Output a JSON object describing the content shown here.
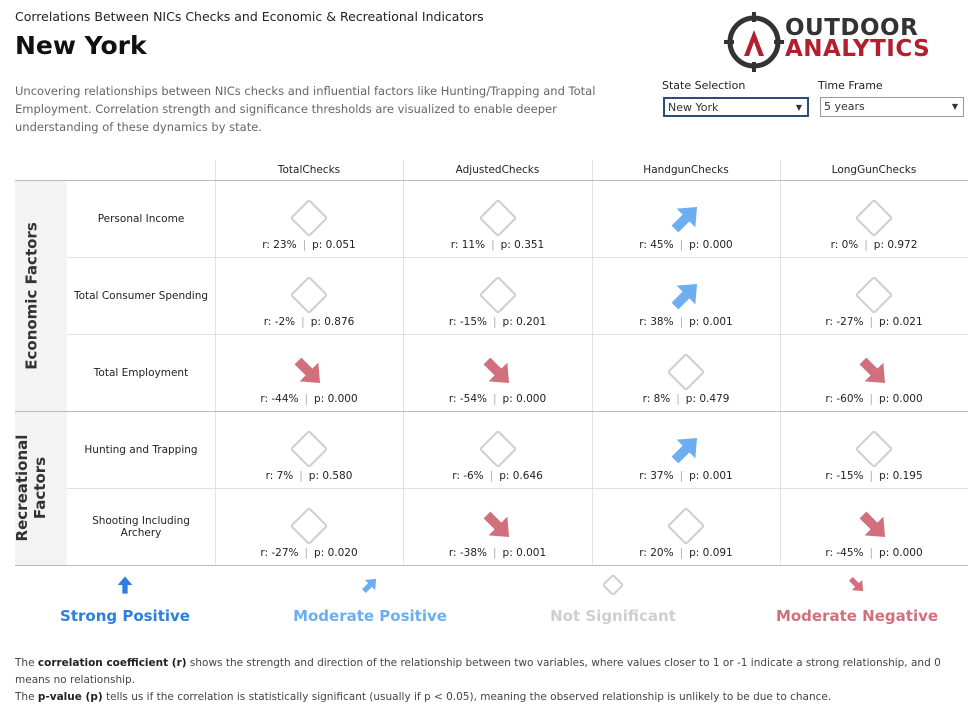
{
  "header": {
    "kicker": "Correlations Between NICs Checks and Economic & Recreational Indicators",
    "title": "New York",
    "description": "Uncovering relationships between NICs checks and influential factors like Hunting/Trapping and Total Employment. Correlation strength and significance thresholds are visualized to enable deeper understanding of these dynamics by state."
  },
  "logo": {
    "line1": "OUTDOOR",
    "line2": "ANALYTICS"
  },
  "filters": [
    {
      "label": "State Selection",
      "value": "New York"
    },
    {
      "label": "Time Frame",
      "value": "5 years"
    }
  ],
  "table": {
    "columns": [
      "TotalChecks",
      "AdjustedChecks",
      "HandgunChecks",
      "LongGunChecks"
    ],
    "groups": [
      {
        "label": "Economic Factors",
        "rows": [
          {
            "label": "Personal Income",
            "cells": [
              {
                "r": "r: 23%",
                "p": "p: 0.051",
                "level": 2
              },
              {
                "r": "r: 11%",
                "p": "p: 0.351",
                "level": 2
              },
              {
                "r": "r: 45%",
                "p": "p: 0.000",
                "level": 1
              },
              {
                "r": "r: 0%",
                "p": "p: 0.972",
                "level": 2
              }
            ]
          },
          {
            "label": "Total Consumer Spending",
            "cells": [
              {
                "r": "r: -2%",
                "p": "p: 0.876",
                "level": 2
              },
              {
                "r": "r: -15%",
                "p": "p: 0.201",
                "level": 2
              },
              {
                "r": "r: 38%",
                "p": "p: 0.001",
                "level": 1
              },
              {
                "r": "r: -27%",
                "p": "p: 0.021",
                "level": 2
              }
            ]
          },
          {
            "label": "Total Employment",
            "cells": [
              {
                "r": "r: -44%",
                "p": "p: 0.000",
                "level": 3
              },
              {
                "r": "r: -54%",
                "p": "p: 0.000",
                "level": 3
              },
              {
                "r": "r: 8%",
                "p": "p: 0.479",
                "level": 2
              },
              {
                "r": "r: -60%",
                "p": "p: 0.000",
                "level": 3
              }
            ]
          }
        ]
      },
      {
        "label": "Recreational Factors",
        "rows": [
          {
            "label": "Hunting and Trapping",
            "cells": [
              {
                "r": "r: 7%",
                "p": "p: 0.580",
                "level": 2
              },
              {
                "r": "r: -6%",
                "p": "p: 0.646",
                "level": 2
              },
              {
                "r": "r: 37%",
                "p": "p: 0.001",
                "level": 1
              },
              {
                "r": "r: -15%",
                "p": "p: 0.195",
                "level": 2
              }
            ]
          },
          {
            "label": "Shooting Including Archery",
            "cells": [
              {
                "r": "r: -27%",
                "p": "p: 0.020",
                "level": 2
              },
              {
                "r": "r: -38%",
                "p": "p: 0.001",
                "level": 3
              },
              {
                "r": "r: 20%",
                "p": "p: 0.091",
                "level": 2
              },
              {
                "r": "r: -45%",
                "p": "p: 0.000",
                "level": 3
              }
            ]
          }
        ]
      }
    ]
  },
  "legend": [
    {
      "label": "Strong Positive",
      "color": "#2b7fe0"
    },
    {
      "label": "Moderate Positive",
      "color": "#6caef0"
    },
    {
      "label": "Not Significant",
      "color": "#cfcfcf"
    },
    {
      "label": "Moderate Negative",
      "color": "#d1707c"
    }
  ],
  "footer": [
    {
      "pre": "The ",
      "bold": "correlation coefficient (r)",
      "post": " shows the strength and direction of the relationship between two variables, where values closer to 1 or -1 indicate a strong relationship, and 0 means no relationship."
    },
    {
      "pre": "The ",
      "bold": "p-value (p)",
      "post": " tells us if the correlation is statistically significant (usually if p < 0.05), meaning the observed relationship is unlikely to be due to chance."
    }
  ]
}
